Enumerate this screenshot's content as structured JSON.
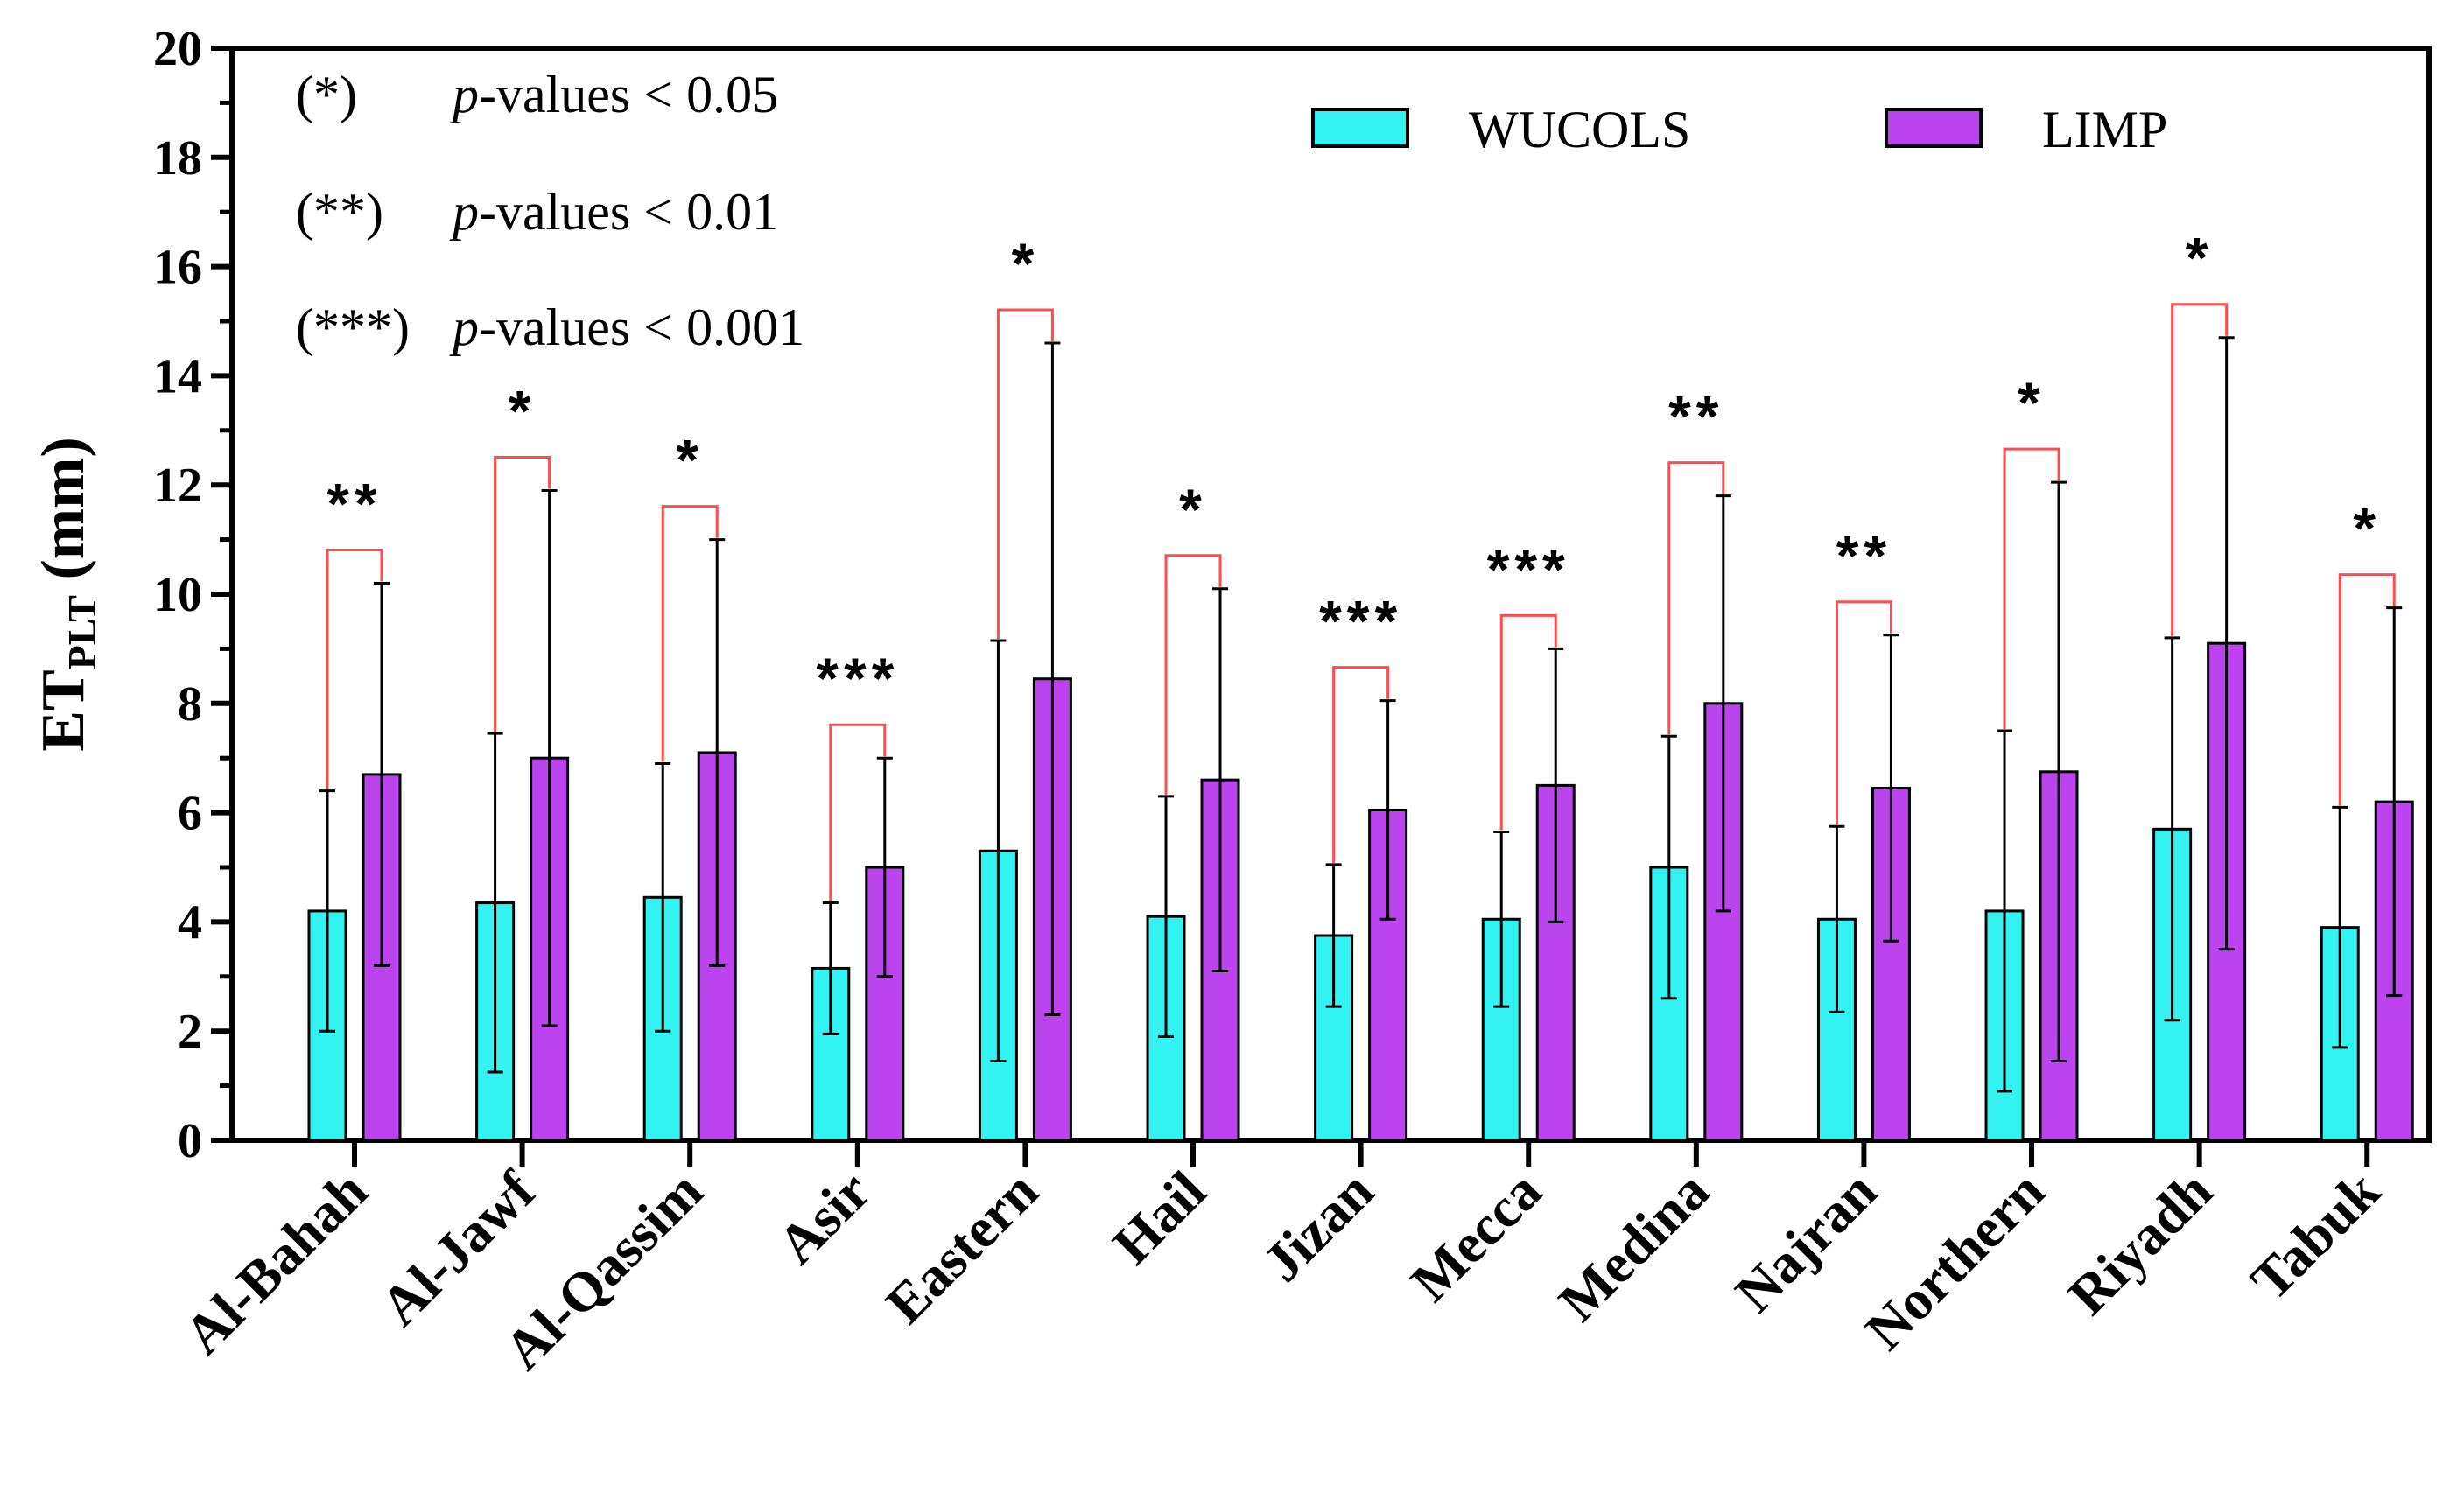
{
  "chart_data": {
    "type": "bar",
    "title": "",
    "xlabel": "",
    "ylabel": "ET",
    "ylabel_subscript": "PLT",
    "ylabel_unit": " (mm)",
    "ylim": [
      0,
      20
    ],
    "yticks": [
      0,
      2,
      4,
      6,
      8,
      10,
      12,
      14,
      16,
      18,
      20
    ],
    "grid": false,
    "legend_position": "top-right",
    "categories": [
      "Al-Bahah",
      "Al-Jawf",
      "Al-Qassim",
      "Asir",
      "Eastern",
      "Hail",
      "Jizan",
      "Mecca",
      "Medina",
      "Najran",
      "Northern",
      "Riyadh",
      "Tabuk"
    ],
    "series": [
      {
        "name": "WUCOLS",
        "color": "#33f2f2",
        "values": [
          4.2,
          4.35,
          4.45,
          3.15,
          5.3,
          4.1,
          3.75,
          4.05,
          5.0,
          4.05,
          4.2,
          5.7,
          3.9
        ],
        "error": [
          2.2,
          3.1,
          2.45,
          1.2,
          3.85,
          2.2,
          1.3,
          1.6,
          2.4,
          1.7,
          3.3,
          3.5,
          2.2
        ]
      },
      {
        "name": "LIMP",
        "color": "#bb44ee",
        "values": [
          6.7,
          7.0,
          7.1,
          5.0,
          8.45,
          6.6,
          6.05,
          6.5,
          8.0,
          6.45,
          6.75,
          9.1,
          6.2
        ],
        "error": [
          3.5,
          4.9,
          3.9,
          2.0,
          6.15,
          3.5,
          2.0,
          2.5,
          3.8,
          2.8,
          5.3,
          5.6,
          3.55
        ]
      }
    ],
    "significance": [
      "**",
      "*",
      "*",
      "***",
      "*",
      "*",
      "***",
      "***",
      "**",
      "**",
      "*",
      "*",
      "*"
    ],
    "bracket_color": "#ff4d4d",
    "notes": [
      {
        "marker": "(*)",
        "italic": "p",
        "text": "-values < 0.05"
      },
      {
        "marker": "(**)",
        "italic": "p",
        "text": "-values < 0.01"
      },
      {
        "marker": "(***)",
        "italic": "p",
        "text": "-values < 0.001"
      }
    ]
  }
}
